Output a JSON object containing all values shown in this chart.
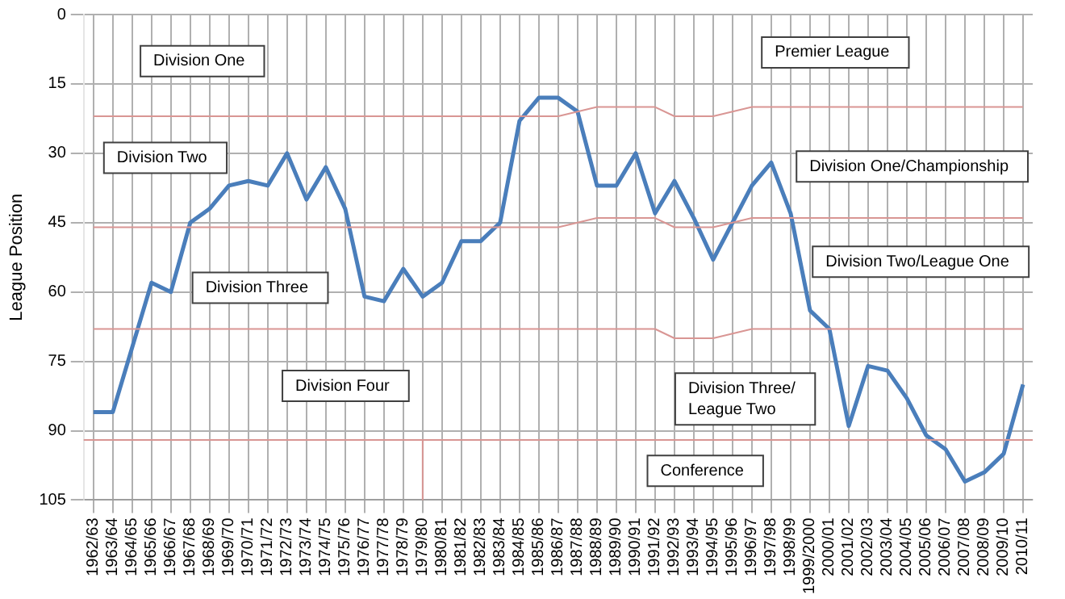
{
  "chart_data": {
    "type": "line",
    "ylabel": "League Position",
    "categories": [
      "1962/63",
      "1963/64",
      "1964/65",
      "1965/66",
      "1966/67",
      "1967/68",
      "1968/69",
      "1969/70",
      "1970/71",
      "1971/72",
      "1972/73",
      "1973/74",
      "1974/75",
      "1975/76",
      "1976/77",
      "1977/78",
      "1978/79",
      "1979/80",
      "1980/81",
      "1981/82",
      "1982/83",
      "1983/84",
      "1984/85",
      "1985/86",
      "1986/87",
      "1987/88",
      "1988/89",
      "1989/90",
      "1990/91",
      "1991/92",
      "1992/93",
      "1993/94",
      "1994/95",
      "1995/96",
      "1996/97",
      "1997/98",
      "1998/99",
      "1999/2000",
      "2000/01",
      "2001/02",
      "2002/03",
      "2003/04",
      "2004/05",
      "2005/06",
      "2006/07",
      "2007/08",
      "2008/09",
      "2009/10",
      "2010/11"
    ],
    "series": [
      {
        "color": "#4a7ebb",
        "values": [
          86,
          86,
          72,
          58,
          60,
          45,
          42,
          37,
          36,
          37,
          30,
          40,
          33,
          42,
          61,
          62,
          55,
          61,
          58,
          49,
          49,
          45,
          23,
          18,
          18,
          21,
          37,
          37,
          30,
          43,
          36,
          44,
          53,
          45,
          37,
          32,
          43,
          64,
          68,
          89,
          76,
          77,
          83,
          91,
          94,
          101,
          99,
          95,
          80
        ]
      },
      {
        "color": "#d99694",
        "values": [
          22,
          22,
          22,
          22,
          22,
          22,
          22,
          22,
          22,
          22,
          22,
          22,
          22,
          22,
          22,
          22,
          22,
          22,
          22,
          22,
          22,
          22,
          22,
          22,
          22,
          21,
          20,
          20,
          20,
          20,
          22,
          22,
          22,
          21,
          20,
          20,
          20,
          20,
          20,
          20,
          20,
          20,
          20,
          20,
          20,
          20,
          20,
          20,
          20
        ]
      },
      {
        "color": "#d99694",
        "values": [
          46,
          46,
          46,
          46,
          46,
          46,
          46,
          46,
          46,
          46,
          46,
          46,
          46,
          46,
          46,
          46,
          46,
          46,
          46,
          46,
          46,
          46,
          46,
          46,
          46,
          45,
          44,
          44,
          44,
          44,
          46,
          46,
          46,
          45,
          44,
          44,
          44,
          44,
          44,
          44,
          44,
          44,
          44,
          44,
          44,
          44,
          44,
          44,
          44
        ]
      },
      {
        "color": "#d99694",
        "values": [
          68,
          68,
          68,
          68,
          68,
          68,
          68,
          68,
          68,
          68,
          68,
          68,
          68,
          68,
          68,
          68,
          68,
          68,
          68,
          68,
          68,
          68,
          68,
          68,
          68,
          68,
          68,
          68,
          68,
          68,
          70,
          70,
          70,
          69,
          68,
          68,
          68,
          68,
          68,
          68,
          68,
          68,
          68,
          68,
          68,
          68,
          68,
          68,
          68
        ]
      }
    ],
    "ref_lines": [
      {
        "axis": "y",
        "value": 92,
        "color": "#d99694"
      },
      {
        "axis": "x",
        "value": "1979/80",
        "color": "#d99694"
      }
    ],
    "ylim": [
      105,
      0
    ],
    "yticks": [
      0,
      15,
      30,
      45,
      60,
      75,
      90,
      105
    ],
    "grid": true,
    "legend": false,
    "marker": "none",
    "line_style": "solid",
    "annotations": [
      "Division One",
      "Division Two",
      "Division Three",
      "Division Four",
      "Premier League",
      "Division One/Championship",
      "Division Two/League One",
      "Division Three/\nLeague Two",
      "Conference"
    ]
  }
}
